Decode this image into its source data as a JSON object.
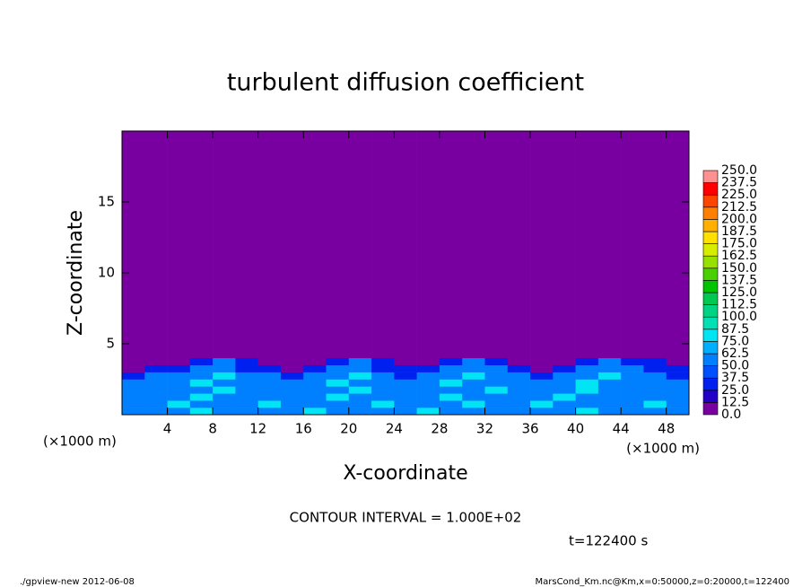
{
  "chart_data": {
    "type": "heatmap",
    "title": "turbulent diffusion coefficient",
    "xlabel": "X-coordinate",
    "ylabel": "Z-coordinate",
    "x_unit": "(×1000 m)",
    "y_unit": "(×1000 m)",
    "contour_note": "CONTOUR INTERVAL = 1.000E+02",
    "time_note": "t=122400 s",
    "footer_left": "./gpview-new  2012-06-08",
    "footer_right": "MarsCond_Km.nc@Km,x=0:50000,z=0:20000,t=122400",
    "xlim": [
      0,
      50
    ],
    "ylim": [
      0,
      20
    ],
    "xticks": [
      4,
      8,
      12,
      16,
      20,
      24,
      28,
      32,
      36,
      40,
      44,
      48
    ],
    "yticks": [
      5,
      10,
      15
    ],
    "x_edges": [
      0,
      2,
      4,
      6,
      8,
      10,
      12,
      14,
      16,
      18,
      20,
      22,
      24,
      26,
      28,
      30,
      32,
      34,
      36,
      38,
      40,
      42,
      44,
      46,
      48,
      50
    ],
    "z_edges": [
      0,
      0.5,
      1,
      1.5,
      2,
      2.5,
      3,
      3.5,
      4,
      4.5,
      20
    ],
    "values": [
      [
        50,
        62,
        50,
        75,
        62,
        50,
        50,
        62,
        75,
        50,
        62,
        50,
        50,
        75,
        62,
        50,
        62,
        50,
        50,
        62,
        75,
        50,
        62,
        50,
        62
      ],
      [
        62,
        50,
        75,
        62,
        50,
        62,
        75,
        50,
        62,
        62,
        50,
        75,
        62,
        50,
        62,
        75,
        50,
        62,
        75,
        50,
        62,
        62,
        50,
        75,
        50
      ],
      [
        50,
        62,
        62,
        75,
        62,
        50,
        62,
        62,
        50,
        75,
        62,
        62,
        50,
        62,
        75,
        62,
        62,
        50,
        62,
        75,
        62,
        50,
        62,
        62,
        50
      ],
      [
        62,
        50,
        50,
        62,
        75,
        62,
        50,
        50,
        62,
        62,
        75,
        50,
        62,
        50,
        62,
        62,
        75,
        50,
        50,
        62,
        75,
        62,
        50,
        62,
        62
      ],
      [
        50,
        50,
        62,
        75,
        62,
        50,
        62,
        50,
        62,
        75,
        62,
        50,
        50,
        62,
        75,
        62,
        50,
        62,
        50,
        62,
        75,
        62,
        62,
        50,
        50
      ],
      [
        37,
        50,
        50,
        62,
        75,
        50,
        50,
        37,
        50,
        62,
        75,
        50,
        37,
        50,
        62,
        75,
        50,
        50,
        37,
        50,
        62,
        75,
        50,
        50,
        37
      ],
      [
        12,
        25,
        37,
        50,
        62,
        37,
        25,
        12,
        37,
        50,
        62,
        37,
        25,
        37,
        50,
        62,
        50,
        25,
        12,
        37,
        50,
        62,
        50,
        37,
        25
      ],
      [
        0,
        0,
        12,
        37,
        50,
        25,
        0,
        0,
        12,
        37,
        50,
        25,
        0,
        12,
        37,
        50,
        37,
        12,
        0,
        12,
        37,
        50,
        37,
        25,
        12
      ],
      [
        0,
        0,
        0,
        0,
        12,
        0,
        0,
        0,
        0,
        0,
        0,
        0,
        0,
        0,
        12,
        12,
        0,
        0,
        0,
        0,
        0,
        0,
        0,
        0,
        0
      ],
      [
        0,
        0,
        0,
        0,
        0,
        0,
        0,
        0,
        0,
        0,
        0,
        0,
        0,
        0,
        0,
        0,
        0,
        0,
        0,
        0,
        0,
        0,
        0,
        0,
        0
      ]
    ],
    "levels": [
      {
        "value": 0,
        "label": "0.0"
      },
      12.5,
      {
        "value": 25,
        "label": "25.0"
      },
      37.5,
      {
        "value": 50,
        "label": "50.0"
      },
      62.5,
      {
        "value": 75,
        "label": "75.0"
      },
      87.5,
      {
        "value": 100,
        "label": "100.0"
      },
      112.5,
      {
        "value": 125,
        "label": "125.0"
      },
      137.5,
      {
        "value": 150,
        "label": "150.0"
      },
      162.5,
      {
        "value": 175,
        "label": "175.0"
      },
      187.5,
      {
        "value": 200,
        "label": "200.0"
      },
      212.5,
      {
        "value": 225,
        "label": "225.0"
      },
      237.5,
      {
        "value": 250,
        "label": "250.0"
      }
    ],
    "colors": [
      "#7800a0",
      "#2200c8",
      "#0020f0",
      "#0050ff",
      "#0080ff",
      "#00b0ff",
      "#00e4f4",
      "#00e0b4",
      "#00d484",
      "#00c850",
      "#00c400",
      "#48d000",
      "#98e000",
      "#d8ec00",
      "#ffe000",
      "#ffb000",
      "#ff8000",
      "#ff4400",
      "#ff0000",
      "#ff9090"
    ]
  }
}
